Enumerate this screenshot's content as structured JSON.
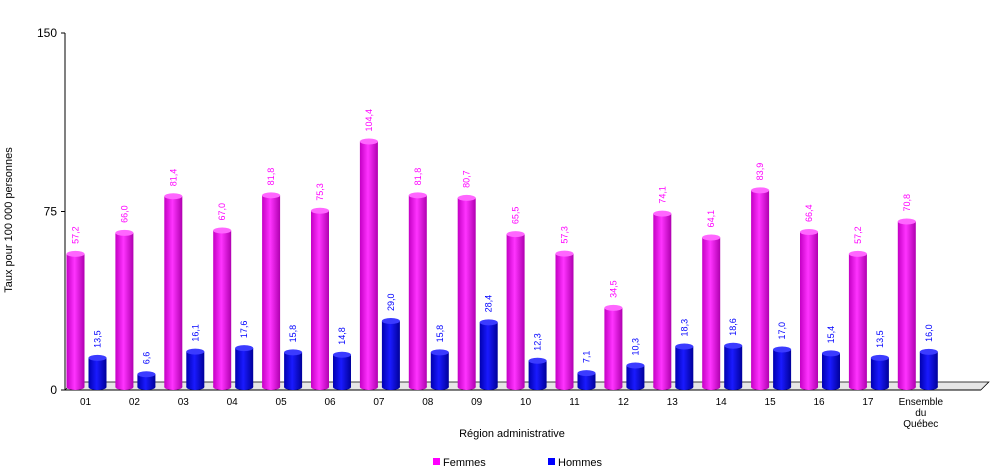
{
  "chart_data": {
    "type": "bar",
    "categories": [
      "01",
      "02",
      "03",
      "04",
      "05",
      "06",
      "07",
      "08",
      "09",
      "10",
      "11",
      "12",
      "13",
      "14",
      "15",
      "16",
      "17",
      "Ensemble du Québec"
    ],
    "category_lines": [
      [
        "01"
      ],
      [
        "02"
      ],
      [
        "03"
      ],
      [
        "04"
      ],
      [
        "05"
      ],
      [
        "06"
      ],
      [
        "07"
      ],
      [
        "08"
      ],
      [
        "09"
      ],
      [
        "10"
      ],
      [
        "11"
      ],
      [
        "12"
      ],
      [
        "13"
      ],
      [
        "14"
      ],
      [
        "15"
      ],
      [
        "16"
      ],
      [
        "17"
      ],
      [
        "Ensemble",
        "du",
        "Québec"
      ]
    ],
    "series": [
      {
        "name": "Femmes",
        "color": "#ff00ff",
        "values": [
          57.2,
          66.0,
          81.4,
          67.0,
          81.8,
          75.3,
          104.4,
          81.8,
          80.7,
          65.5,
          57.3,
          34.5,
          74.1,
          64.1,
          83.9,
          66.4,
          57.2,
          70.8
        ],
        "labels": [
          "57,2",
          "66,0",
          "81,4",
          "67,0",
          "81,8",
          "75,3",
          "104,4",
          "81,8",
          "80,7",
          "65,5",
          "57,3",
          "34,5",
          "74,1",
          "64,1",
          "83,9",
          "66,4",
          "57,2",
          "70,8"
        ]
      },
      {
        "name": "Hommes",
        "color": "#0000ff",
        "values": [
          13.5,
          6.6,
          16.1,
          17.6,
          15.8,
          14.8,
          29.0,
          15.8,
          28.4,
          12.3,
          7.1,
          10.3,
          18.3,
          18.6,
          17.0,
          15.4,
          13.5,
          16.0
        ],
        "labels": [
          "13,5",
          "6,6",
          "16,1",
          "17,6",
          "15,8",
          "14,8",
          "29,0",
          "15,8",
          "28,4",
          "12,3",
          "7,1",
          "10,3",
          "18,3",
          "18,6",
          "17,0",
          "15,4",
          "13,5",
          "16,0"
        ]
      }
    ],
    "xlabel": "Région administrative",
    "ylabel": "Taux pour 100 000 personnes",
    "ylim": [
      0,
      150
    ],
    "yticks": [
      "0",
      "75",
      "150"
    ],
    "legend": {
      "position": "bottom"
    },
    "grid": false
  }
}
